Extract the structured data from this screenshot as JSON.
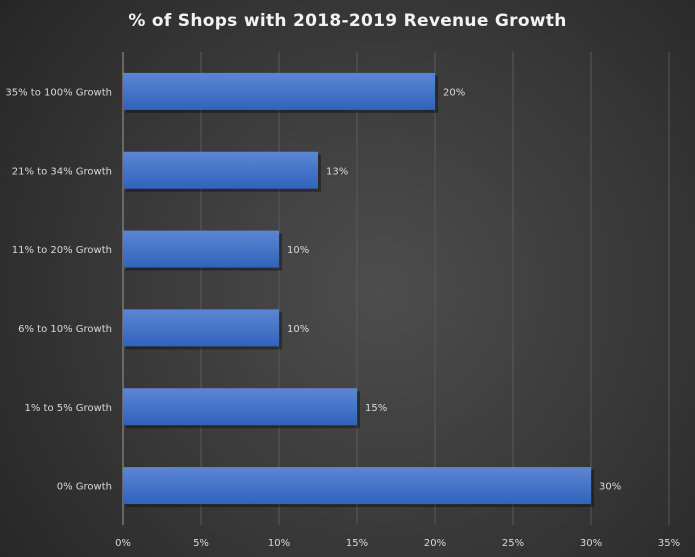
{
  "chart_data": {
    "type": "bar",
    "orientation": "horizontal",
    "title": "% of Shops  with 2018-2019 Revenue Growth",
    "categories": [
      "35% to 100% Growth",
      "21% to 34% Growth",
      "11% to 20% Growth",
      "6% to 10% Growth",
      "1% to 5% Growth",
      "0% Growth"
    ],
    "values": [
      20,
      12.5,
      10,
      10,
      15,
      30
    ],
    "data_labels": [
      "20%",
      "13%",
      "10%",
      "10%",
      "15%",
      "30%"
    ],
    "xlim": [
      0,
      35
    ],
    "xticks": [
      0,
      5,
      10,
      15,
      20,
      25,
      30,
      35
    ],
    "xtick_labels": [
      "0%",
      "5%",
      "10%",
      "15%",
      "20%",
      "25%",
      "30%",
      "35%"
    ],
    "xlabel": "",
    "ylabel": "",
    "grid": "vertical",
    "legend": "none",
    "colors": {
      "bar_top": "#5b86d3",
      "bar_bottom": "#3163bd",
      "background": "#3c3c3c",
      "text": "#d9d9d9",
      "grid": "#5a5a5a"
    }
  }
}
